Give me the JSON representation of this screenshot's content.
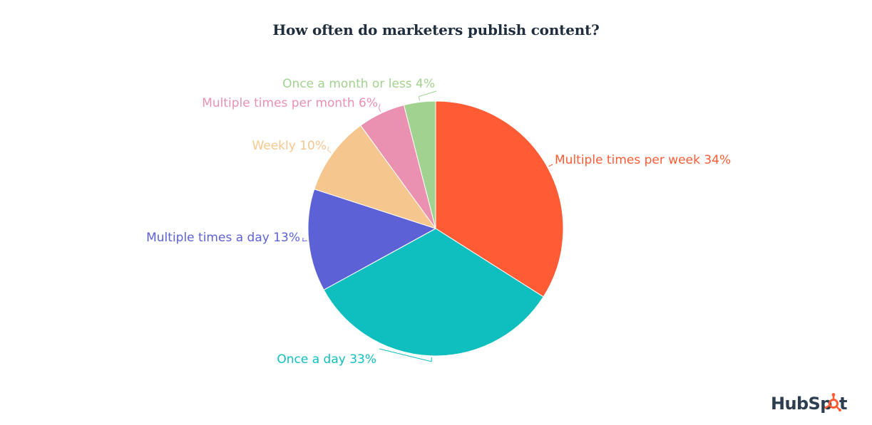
{
  "chart_data": {
    "type": "pie",
    "title": "How often do marketers publish content?",
    "slices": [
      {
        "label": "Multiple times per week 34%",
        "value": 34,
        "color": "#ff5c35"
      },
      {
        "label": "Once a day 33%",
        "value": 33,
        "color": "#0fbfbf"
      },
      {
        "label": "Multiple times a day 13%",
        "value": 13,
        "color": "#5c62d6"
      },
      {
        "label": "Weekly 10%",
        "value": 10,
        "color": "#f5c78e"
      },
      {
        "label": "Multiple times per month 6%",
        "value": 6,
        "color": "#ea90b1"
      },
      {
        "label": "Once a month or less 4%",
        "value": 4,
        "color": "#a2d28f"
      }
    ],
    "start_angle_deg": 0,
    "direction": "clockwise",
    "legend": "none"
  },
  "branding": {
    "logo_text": "HubSpot",
    "logo_color": "#2d3e50",
    "accent_color": "#ff5c35"
  }
}
